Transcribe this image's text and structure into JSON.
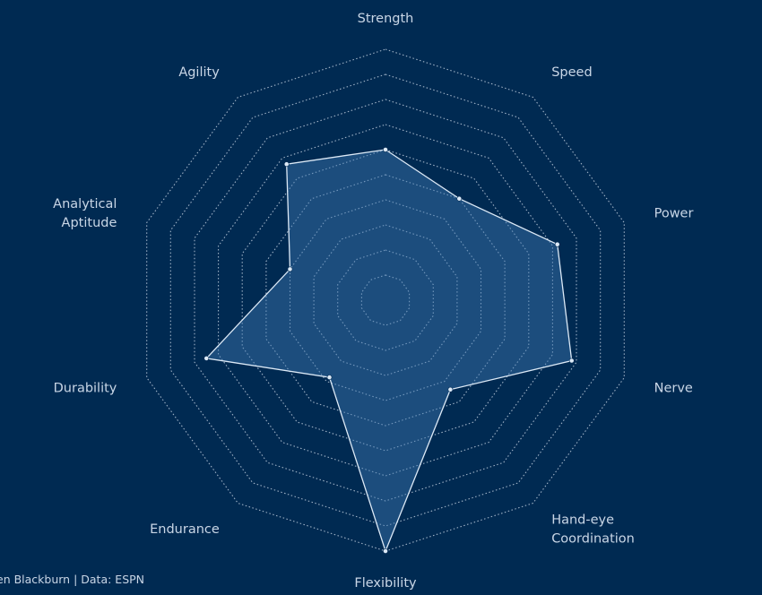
{
  "credit": "en Blackburn | Data: ESPN",
  "colors": {
    "background": "#002a52",
    "grid": "#9fb2c6",
    "fill": "#3e78b2",
    "line": "#dce9f6",
    "label": "#c9d6e6"
  },
  "chart_data": {
    "type": "radar",
    "title": "",
    "axes": [
      {
        "label": [
          "Strength"
        ]
      },
      {
        "label": [
          "Speed"
        ]
      },
      {
        "label": [
          "Power"
        ]
      },
      {
        "label": [
          "Nerve"
        ]
      },
      {
        "label": [
          "Hand-eye",
          "Coordination"
        ]
      },
      {
        "label": [
          "Flexibility"
        ]
      },
      {
        "label": [
          "Endurance"
        ]
      },
      {
        "label": [
          "Durability"
        ]
      },
      {
        "label": [
          "Analytical",
          "Aptitude"
        ]
      },
      {
        "label": [
          "Agility"
        ]
      }
    ],
    "scale": {
      "min": 0,
      "max": 10,
      "rings": 10
    },
    "series": [
      {
        "values": [
          6.0,
          5.0,
          7.2,
          7.8,
          4.4,
          10.0,
          3.8,
          7.5,
          4.0,
          6.7
        ]
      }
    ]
  }
}
